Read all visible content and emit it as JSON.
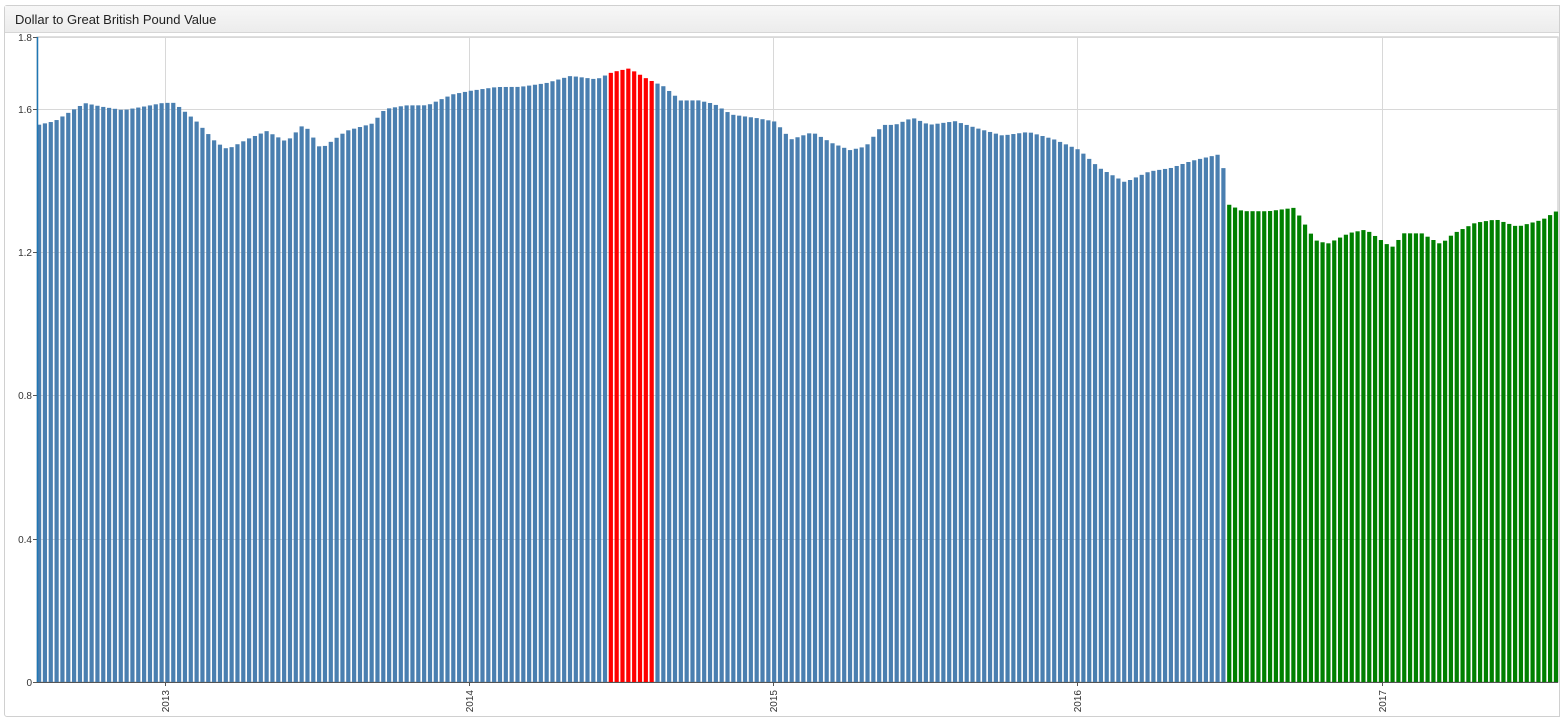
{
  "widget": {
    "title": "Dollar to Great British Pound Value"
  },
  "chart_data": {
    "type": "bar",
    "title": "Dollar to Great British Pound Value",
    "xlabel": "",
    "ylabel": "",
    "ylim": [
      0,
      1.8
    ],
    "xlim": [
      "2012-08-01",
      "2017-07-31"
    ],
    "grid": true,
    "legend": "none",
    "bar_frequency": "weekly",
    "colors": {
      "default": "#4a7fb0",
      "high": "#ff0000",
      "low": "#008000",
      "grid": "#d8d8d8",
      "axis": "#1f77b4"
    },
    "y_ticks": [
      "0",
      "0.4",
      "0.8",
      "1.2",
      "1.6",
      "1.8"
    ],
    "x_ticks": [
      "2013",
      "2014",
      "2015",
      "2016",
      "2017"
    ],
    "x_tick_dates": [
      "2013-01-01",
      "2014-01-01",
      "2015-01-01",
      "2016-01-01",
      "2017-01-01"
    ],
    "highlight_rules": [
      {
        "color": "high",
        "from": "2014-06-15",
        "to": "2014-08-10"
      },
      {
        "color": "low",
        "from": "2016-06-24",
        "to": "2017-07-31"
      }
    ],
    "series": [
      {
        "points": [
          [
            "2012-08-01",
            1.56
          ],
          [
            "2012-08-20",
            1.57
          ],
          [
            "2012-09-10",
            1.6
          ],
          [
            "2012-09-25",
            1.62
          ],
          [
            "2012-10-15",
            1.61
          ],
          [
            "2012-11-10",
            1.6
          ],
          [
            "2012-12-05",
            1.61
          ],
          [
            "2012-12-28",
            1.62
          ],
          [
            "2013-01-10",
            1.62
          ],
          [
            "2013-02-05",
            1.57
          ],
          [
            "2013-03-01",
            1.51
          ],
          [
            "2013-03-15",
            1.49
          ],
          [
            "2013-04-10",
            1.52
          ],
          [
            "2013-05-01",
            1.54
          ],
          [
            "2013-05-25",
            1.51
          ],
          [
            "2013-06-15",
            1.56
          ],
          [
            "2013-07-05",
            1.49
          ],
          [
            "2013-08-05",
            1.54
          ],
          [
            "2013-09-05",
            1.56
          ],
          [
            "2013-09-20",
            1.6
          ],
          [
            "2013-10-15",
            1.61
          ],
          [
            "2013-11-10",
            1.61
          ],
          [
            "2013-12-10",
            1.64
          ],
          [
            "2014-01-01",
            1.65
          ],
          [
            "2014-02-01",
            1.66
          ],
          [
            "2014-03-01",
            1.66
          ],
          [
            "2014-04-01",
            1.67
          ],
          [
            "2014-05-01",
            1.69
          ],
          [
            "2014-06-01",
            1.68
          ],
          [
            "2014-06-20",
            1.7
          ],
          [
            "2014-07-10",
            1.71
          ],
          [
            "2014-08-01",
            1.68
          ],
          [
            "2014-08-20",
            1.66
          ],
          [
            "2014-09-10",
            1.62
          ],
          [
            "2014-10-01",
            1.62
          ],
          [
            "2014-10-20",
            1.61
          ],
          [
            "2014-11-10",
            1.58
          ],
          [
            "2014-12-10",
            1.57
          ],
          [
            "2015-01-01",
            1.56
          ],
          [
            "2015-01-20",
            1.51
          ],
          [
            "2015-02-15",
            1.53
          ],
          [
            "2015-03-10",
            1.5
          ],
          [
            "2015-04-01",
            1.48
          ],
          [
            "2015-04-20",
            1.49
          ],
          [
            "2015-05-10",
            1.55
          ],
          [
            "2015-05-25",
            1.55
          ],
          [
            "2015-06-15",
            1.57
          ],
          [
            "2015-07-05",
            1.55
          ],
          [
            "2015-08-05",
            1.56
          ],
          [
            "2015-09-01",
            1.54
          ],
          [
            "2015-10-01",
            1.52
          ],
          [
            "2015-11-01",
            1.53
          ],
          [
            "2015-12-01",
            1.51
          ],
          [
            "2016-01-01",
            1.48
          ],
          [
            "2016-01-25",
            1.43
          ],
          [
            "2016-02-25",
            1.39
          ],
          [
            "2016-03-25",
            1.42
          ],
          [
            "2016-04-20",
            1.43
          ],
          [
            "2016-05-15",
            1.45
          ],
          [
            "2016-06-20",
            1.47
          ],
          [
            "2016-06-27",
            1.33
          ],
          [
            "2016-07-15",
            1.31
          ],
          [
            "2016-08-15",
            1.31
          ],
          [
            "2016-09-15",
            1.32
          ],
          [
            "2016-10-10",
            1.23
          ],
          [
            "2016-10-25",
            1.22
          ],
          [
            "2016-11-20",
            1.25
          ],
          [
            "2016-12-10",
            1.26
          ],
          [
            "2017-01-10",
            1.21
          ],
          [
            "2017-01-25",
            1.25
          ],
          [
            "2017-02-15",
            1.25
          ],
          [
            "2017-03-10",
            1.22
          ],
          [
            "2017-03-25",
            1.25
          ],
          [
            "2017-04-20",
            1.28
          ],
          [
            "2017-05-15",
            1.29
          ],
          [
            "2017-06-10",
            1.27
          ],
          [
            "2017-07-10",
            1.29
          ],
          [
            "2017-07-31",
            1.32
          ]
        ]
      }
    ]
  }
}
